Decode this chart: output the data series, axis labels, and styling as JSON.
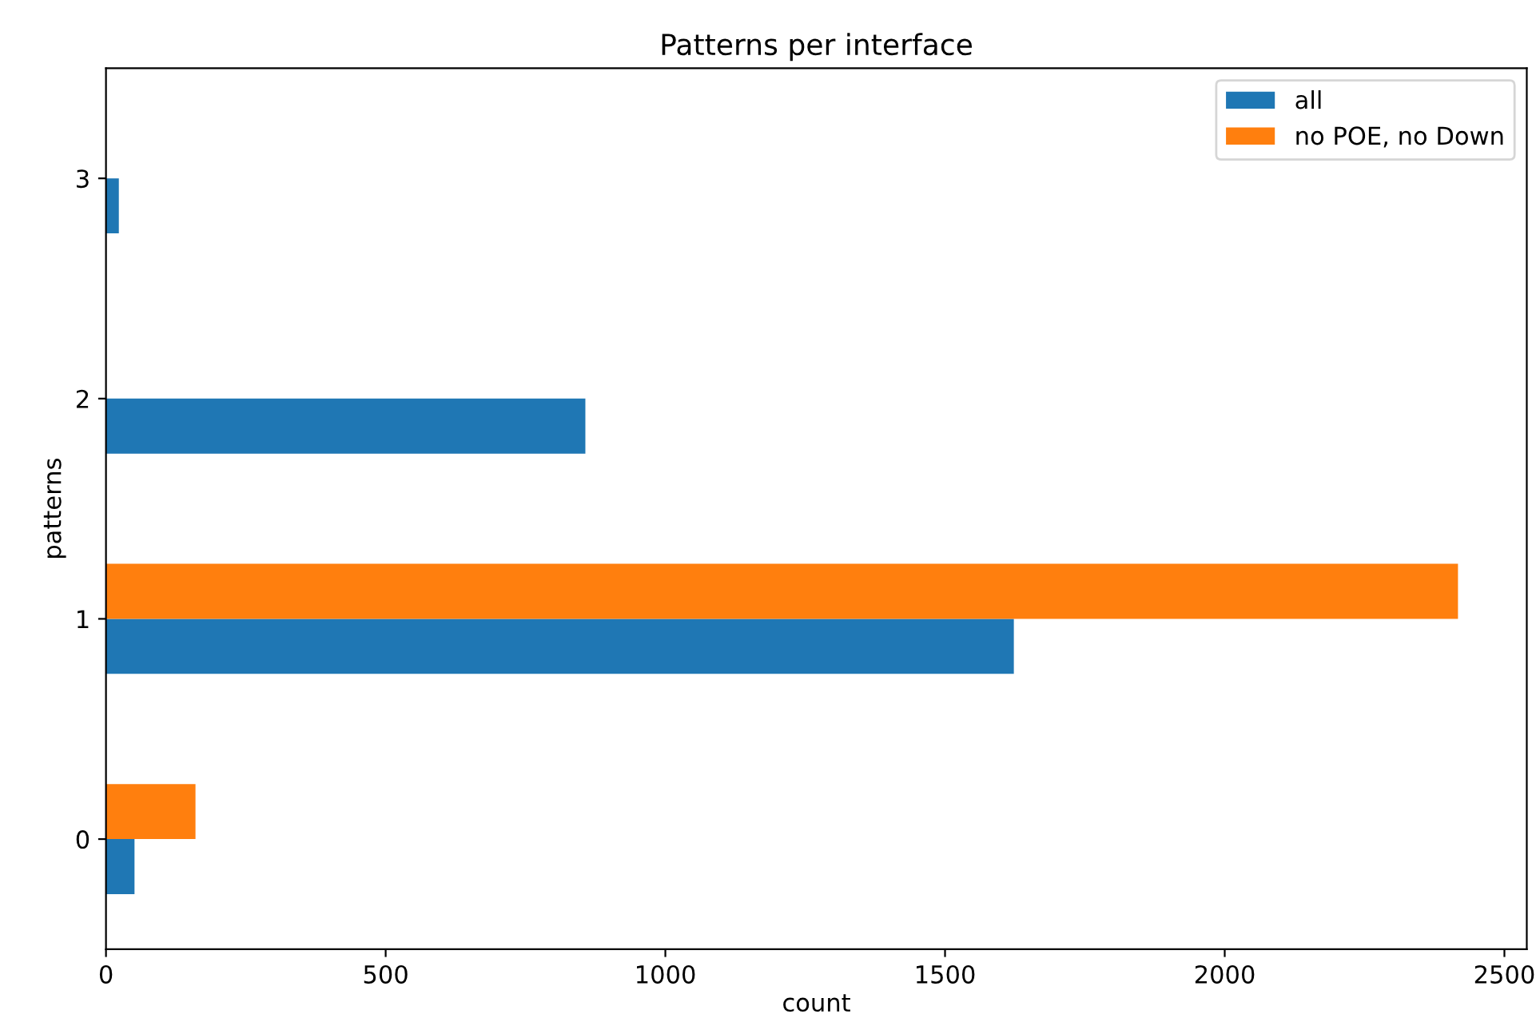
{
  "chart_data": {
    "type": "bar",
    "orientation": "horizontal",
    "title": "Patterns per interface",
    "xlabel": "count",
    "ylabel": "patterns",
    "categories": [
      "3",
      "2",
      "1",
      "0"
    ],
    "series": [
      {
        "name": "all",
        "color": "#1f77b4",
        "values": [
          23,
          857,
          1623,
          51
        ]
      },
      {
        "name": "no POE, no Down",
        "color": "#ff7f0e",
        "values": [
          null,
          null,
          2417,
          160
        ]
      }
    ],
    "xlim": [
      0,
      2540
    ],
    "xticks": [
      0,
      500,
      1000,
      1500,
      2000,
      2500
    ],
    "grid": false,
    "legend": "top right"
  }
}
